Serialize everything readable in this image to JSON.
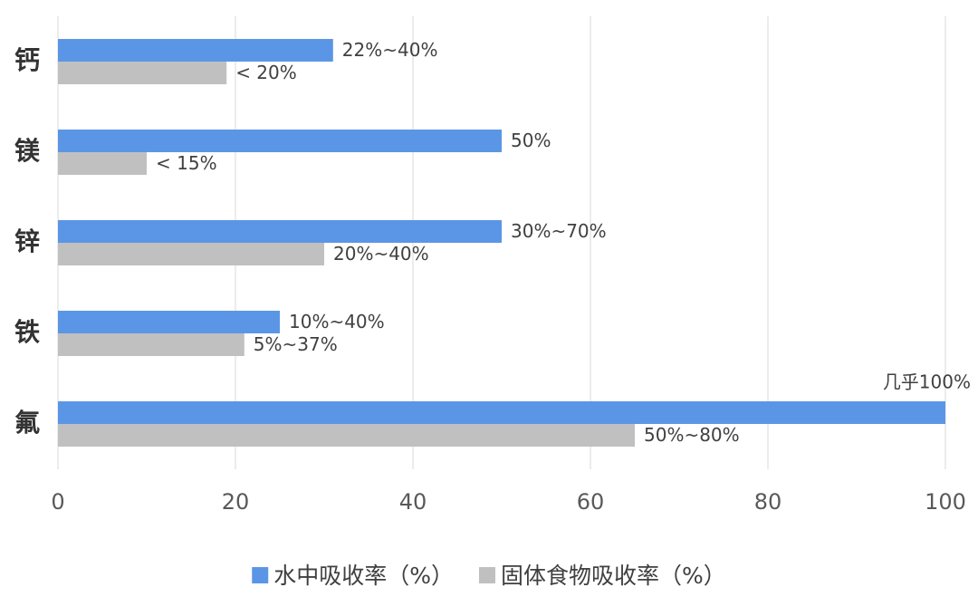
{
  "chart_data": {
    "type": "bar",
    "orientation": "horizontal",
    "categories": [
      "钙",
      "镁",
      "锌",
      "铁",
      "氟"
    ],
    "series": [
      {
        "name": "水中吸收率（%）",
        "color": "#5b96e6",
        "values": [
          31,
          50,
          50,
          25,
          100
        ],
        "value_labels": [
          "22%~40%",
          "50%",
          "30%~70%",
          "10%~40%",
          "几乎100%"
        ]
      },
      {
        "name": "固体食物吸收率（%）",
        "color": "#c0c0c0",
        "values": [
          19,
          10,
          30,
          21,
          65
        ],
        "value_labels": [
          "< 20%",
          "< 15%",
          "20%~40%",
          "5%~37%",
          "50%~80%"
        ]
      }
    ],
    "xlim": [
      0,
      100
    ],
    "xticks": [
      0,
      20,
      40,
      60,
      80,
      100
    ],
    "grid": true,
    "legend": "bottom"
  }
}
